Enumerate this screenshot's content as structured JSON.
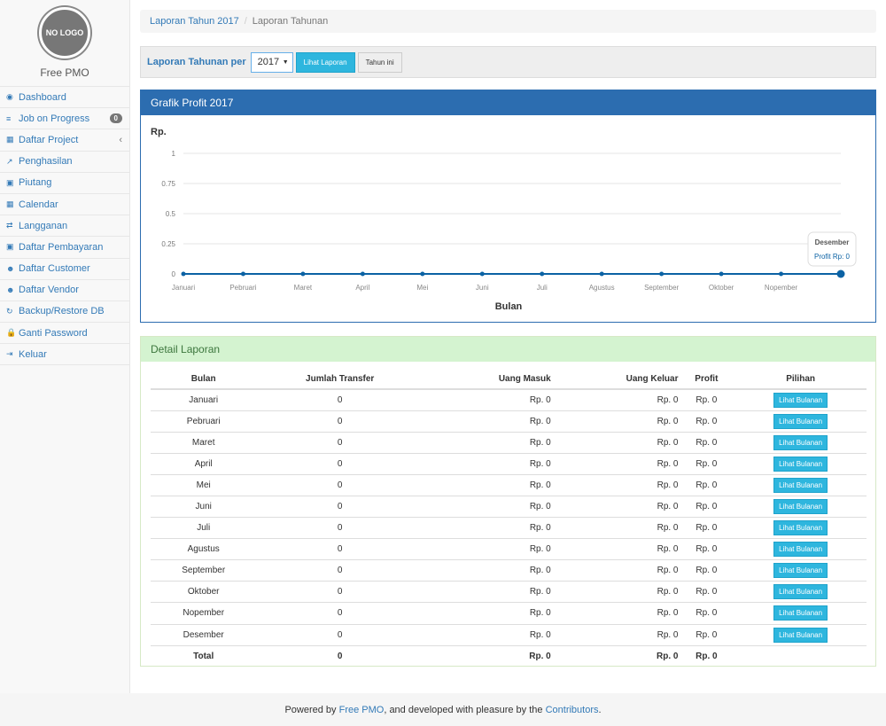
{
  "sidebar": {
    "logo_text": "NO LOGO",
    "brand": "Free PMO",
    "items": [
      {
        "label": "Dashboard",
        "icon": "dashboard-icon",
        "glyph": "◉"
      },
      {
        "label": "Job on Progress",
        "icon": "tasks-icon",
        "glyph": "≡",
        "badge": "0"
      },
      {
        "label": "Daftar Project",
        "icon": "table-icon",
        "glyph": "▦",
        "chevron": "‹"
      },
      {
        "label": "Penghasilan",
        "icon": "line-chart-icon",
        "glyph": "↗"
      },
      {
        "label": "Piutang",
        "icon": "money-icon",
        "glyph": "▣"
      },
      {
        "label": "Calendar",
        "icon": "calendar-icon",
        "glyph": "▦"
      },
      {
        "label": "Langganan",
        "icon": "retweet-icon",
        "glyph": "⇄"
      },
      {
        "label": "Daftar Pembayaran",
        "icon": "money-icon",
        "glyph": "▣"
      },
      {
        "label": "Daftar Customer",
        "icon": "users-icon",
        "glyph": "☻"
      },
      {
        "label": "Daftar Vendor",
        "icon": "users-icon",
        "glyph": "☻"
      },
      {
        "label": "Backup/Restore DB",
        "icon": "refresh-icon",
        "glyph": "↻"
      },
      {
        "label": "Ganti Password",
        "icon": "lock-icon",
        "glyph": "🔒"
      },
      {
        "label": "Keluar",
        "icon": "sign-out-icon",
        "glyph": "⇥"
      }
    ]
  },
  "breadcrumb": {
    "link": "Laporan Tahun 2017",
    "sep": "/",
    "current": "Laporan Tahunan"
  },
  "toolbar": {
    "label": "Laporan Tahunan per",
    "year": "2017",
    "view_btn": "Lihat Laporan",
    "this_year_btn": "Tahun ini"
  },
  "chart_panel": {
    "title": "Grafik Profit 2017"
  },
  "chart_data": {
    "type": "line",
    "ylabel": "Rp.",
    "xlabel": "Bulan",
    "ylim": [
      0,
      1
    ],
    "yticks": [
      "1",
      "0.75",
      "0.5",
      "0.25",
      "0"
    ],
    "grid": true,
    "categories": [
      "Januari",
      "Pebruari",
      "Maret",
      "April",
      "Mei",
      "Juni",
      "Juli",
      "Agustus",
      "September",
      "Oktober",
      "Nopember",
      "Desember"
    ],
    "series": [
      {
        "values": [
          0,
          0,
          0,
          0,
          0,
          0,
          0,
          0,
          0,
          0,
          0,
          0
        ]
      }
    ],
    "color": "#0b62a4",
    "tooltip": {
      "title": "Desember",
      "text": "Profit Rp: 0"
    }
  },
  "detail": {
    "title": "Detail Laporan",
    "headers": [
      "Bulan",
      "Jumlah Transfer",
      "Uang Masuk",
      "Uang Keluar",
      "Profit",
      "Pilihan"
    ],
    "rows": [
      [
        "Januari",
        "0",
        "Rp. 0",
        "Rp. 0",
        "Rp. 0"
      ],
      [
        "Pebruari",
        "0",
        "Rp. 0",
        "Rp. 0",
        "Rp. 0"
      ],
      [
        "Maret",
        "0",
        "Rp. 0",
        "Rp. 0",
        "Rp. 0"
      ],
      [
        "April",
        "0",
        "Rp. 0",
        "Rp. 0",
        "Rp. 0"
      ],
      [
        "Mei",
        "0",
        "Rp. 0",
        "Rp. 0",
        "Rp. 0"
      ],
      [
        "Juni",
        "0",
        "Rp. 0",
        "Rp. 0",
        "Rp. 0"
      ],
      [
        "Juli",
        "0",
        "Rp. 0",
        "Rp. 0",
        "Rp. 0"
      ],
      [
        "Agustus",
        "0",
        "Rp. 0",
        "Rp. 0",
        "Rp. 0"
      ],
      [
        "September",
        "0",
        "Rp. 0",
        "Rp. 0",
        "Rp. 0"
      ],
      [
        "Oktober",
        "0",
        "Rp. 0",
        "Rp. 0",
        "Rp. 0"
      ],
      [
        "Nopember",
        "0",
        "Rp. 0",
        "Rp. 0",
        "Rp. 0"
      ],
      [
        "Desember",
        "0",
        "Rp. 0",
        "Rp. 0",
        "Rp. 0"
      ]
    ],
    "row_button": "Lihat Bulanan",
    "total": [
      "Total",
      "0",
      "Rp. 0",
      "Rp. 0",
      "Rp. 0"
    ]
  },
  "footer": {
    "prefix": "Powered by ",
    "brand": "Free PMO",
    "middle": ", and developed with pleasure by the ",
    "link": "Contributors",
    "suffix": "."
  }
}
